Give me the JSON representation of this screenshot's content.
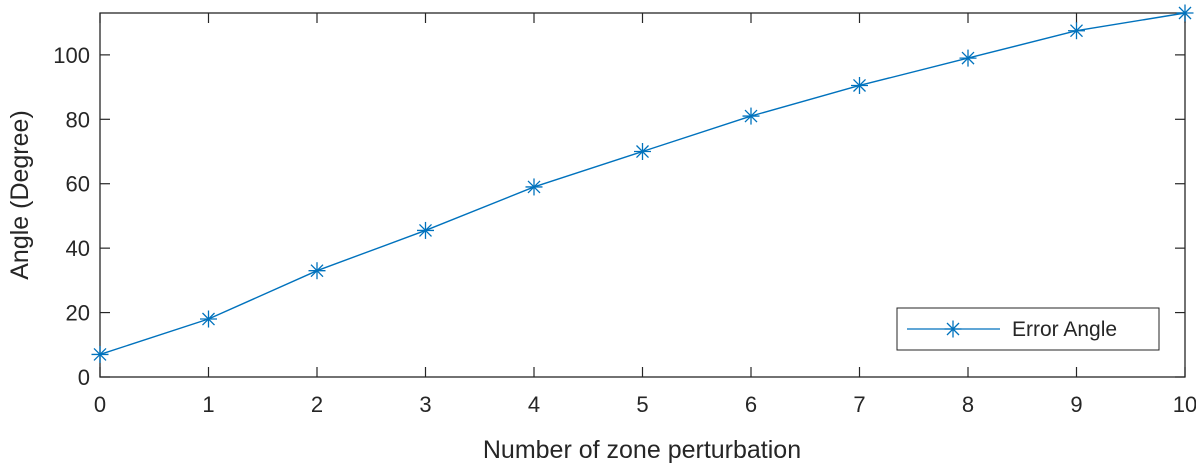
{
  "chart_data": {
    "type": "line",
    "x": [
      0,
      1,
      2,
      3,
      4,
      5,
      6,
      7,
      8,
      9,
      10
    ],
    "series": [
      {
        "name": "Error Angle",
        "values": [
          7,
          18,
          33,
          45.5,
          59,
          70,
          81,
          90.5,
          99,
          107.5,
          113
        ],
        "color": "#0072BD",
        "marker": "asterisk"
      }
    ],
    "xlabel": "Number of zone perturbation",
    "ylabel": "Angle (Degree)",
    "xlim": [
      0,
      10
    ],
    "ylim": [
      0,
      113
    ],
    "xticks": [
      0,
      1,
      2,
      3,
      4,
      5,
      6,
      7,
      8,
      9,
      10
    ],
    "yticks": [
      0,
      20,
      40,
      60,
      80,
      100
    ],
    "legend_position": "bottom-right",
    "grid": false,
    "box": true
  }
}
